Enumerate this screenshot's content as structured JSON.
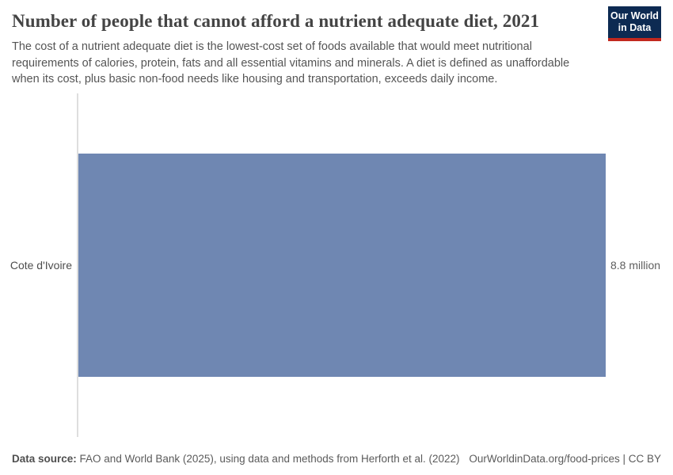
{
  "header": {
    "title": "Number of people that cannot afford a nutrient adequate diet, 2021",
    "subtitle": "The cost of a nutrient adequate diet is the lowest-cost set of foods available that would meet nutritional requirements of calories, protein, fats and all essential vitamins and minerals. A diet is defined as unaffordable when its cost, plus basic non-food needs like housing and transportation, exceeds daily income.",
    "logo": {
      "line1": "Our World",
      "line2": "in Data",
      "bg_color": "#0d2a52",
      "accent_color": "#c2281e"
    }
  },
  "chart_data": {
    "type": "bar",
    "orientation": "horizontal",
    "title": "Number of people that cannot afford a nutrient adequate diet, 2021",
    "categories": [
      "Cote d'Ivoire"
    ],
    "values": [
      8800000
    ],
    "value_labels": [
      "8.8 million"
    ],
    "xlim": [
      0,
      8800000
    ],
    "xlabel": "",
    "ylabel": "",
    "grid": false,
    "legend": "none",
    "bar_color": "#6f87b2",
    "axis_line_color": "#dedede"
  },
  "footer": {
    "source_label": "Data source:",
    "source_text": "FAO and World Bank (2025), using data and methods from Herforth et al. (2022)",
    "link_text": "OurWorldinData.org/food-prices | CC BY"
  }
}
